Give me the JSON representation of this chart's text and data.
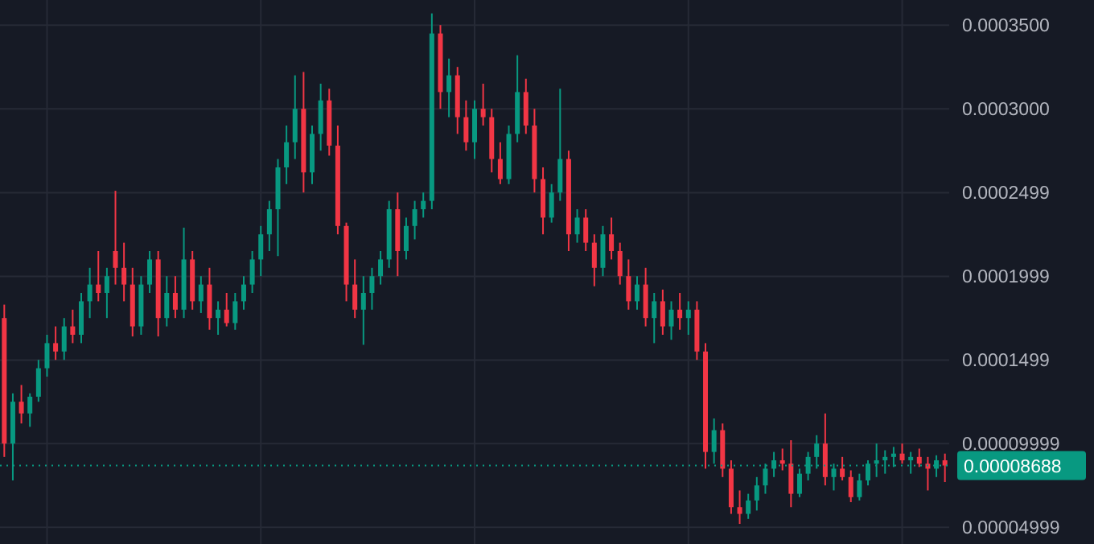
{
  "chart_data": {
    "type": "candlestick",
    "categories": [
      null,
      null,
      null,
      null,
      null,
      null,
      null,
      null,
      null,
      null,
      null,
      null,
      null,
      null,
      null,
      null,
      null,
      null,
      null,
      null,
      null,
      null,
      null,
      null,
      null,
      null,
      null,
      null,
      null,
      null,
      null,
      null,
      null,
      null,
      null,
      null,
      null,
      null,
      null,
      null,
      null,
      null,
      null,
      null,
      null,
      null,
      null,
      null,
      null,
      null,
      null,
      null,
      null,
      null,
      null,
      null,
      null,
      null,
      null,
      null,
      null,
      null,
      null,
      null,
      null,
      null,
      null,
      null,
      null,
      null,
      null,
      null,
      null,
      null,
      null,
      null,
      null,
      null,
      null,
      null,
      null,
      null,
      null,
      null,
      null,
      null,
      null,
      null,
      null,
      null,
      null,
      null,
      null,
      null,
      null,
      null,
      null,
      null,
      null,
      null,
      null,
      null,
      null,
      null,
      null,
      null,
      null,
      null,
      null,
      null,
      null
    ],
    "ohlc": [
      [
        0.000175,
        0.000183,
        9.2e-05,
        0.0001
      ],
      [
        0.0001,
        0.00013,
        7.8e-05,
        0.000125
      ],
      [
        0.000125,
        0.000135,
        0.000112,
        0.000118
      ],
      [
        0.000118,
        0.00013,
        0.00011,
        0.000128
      ],
      [
        0.000128,
        0.00015,
        0.000125,
        0.000145
      ],
      [
        0.000145,
        0.000165,
        0.00014,
        0.00016
      ],
      [
        0.00016,
        0.00017,
        0.00015,
        0.000155
      ],
      [
        0.000155,
        0.000175,
        0.00015,
        0.00017
      ],
      [
        0.00017,
        0.00018,
        0.00016,
        0.000165
      ],
      [
        0.000165,
        0.00019,
        0.00016,
        0.000185
      ],
      [
        0.000185,
        0.000205,
        0.000175,
        0.000195
      ],
      [
        0.000195,
        0.000215,
        0.000185,
        0.00019
      ],
      [
        0.00019,
        0.000205,
        0.000175,
        0.0002
      ],
      [
        0.000215,
        0.000251,
        0.000195,
        0.000205
      ],
      [
        0.000205,
        0.00022,
        0.000185,
        0.000195
      ],
      [
        0.000195,
        0.000205,
        0.000164,
        0.00017
      ],
      [
        0.00017,
        0.0002,
        0.000165,
        0.000195
      ],
      [
        0.000195,
        0.000215,
        0.00019,
        0.00021
      ],
      [
        0.00021,
        0.000215,
        0.000164,
        0.000175
      ],
      [
        0.000175,
        0.0002,
        0.00017,
        0.00019
      ],
      [
        0.00019,
        0.0002,
        0.000175,
        0.00018
      ],
      [
        0.00018,
        0.000229,
        0.000175,
        0.00021
      ],
      [
        0.00021,
        0.000215,
        0.00018,
        0.000185
      ],
      [
        0.000185,
        0.0002,
        0.000178,
        0.000195
      ],
      [
        0.000195,
        0.000205,
        0.000168,
        0.000175
      ],
      [
        0.000175,
        0.000185,
        0.000165,
        0.00018
      ],
      [
        0.00018,
        0.00019,
        0.00017,
        0.000172
      ],
      [
        0.000172,
        0.00019,
        0.000168,
        0.000185
      ],
      [
        0.000185,
        0.0002,
        0.00018,
        0.000195
      ],
      [
        0.000195,
        0.000215,
        0.00019,
        0.00021
      ],
      [
        0.00021,
        0.00023,
        0.0002,
        0.000225
      ],
      [
        0.000225,
        0.000245,
        0.000215,
        0.00024
      ],
      [
        0.00024,
        0.00027,
        0.000212,
        0.000265
      ],
      [
        0.000265,
        0.00029,
        0.000255,
        0.00028
      ],
      [
        0.00028,
        0.00032,
        0.00027,
        0.0003
      ],
      [
        0.0003,
        0.000322,
        0.00025,
        0.000262
      ],
      [
        0.000262,
        0.00029,
        0.000255,
        0.000285
      ],
      [
        0.000285,
        0.000315,
        0.000275,
        0.000305
      ],
      [
        0.000305,
        0.000312,
        0.000272,
        0.000278
      ],
      [
        0.000278,
        0.00029,
        0.000225,
        0.00023
      ],
      [
        0.00023,
        0.000232,
        0.000185,
        0.000195
      ],
      [
        0.000195,
        0.00021,
        0.000175,
        0.00018
      ],
      [
        0.00018,
        0.0002,
        0.000159,
        0.00019
      ],
      [
        0.00019,
        0.000205,
        0.00018,
        0.0002
      ],
      [
        0.0002,
        0.000215,
        0.000195,
        0.00021
      ],
      [
        0.00021,
        0.000245,
        0.000205,
        0.00024
      ],
      [
        0.00024,
        0.00025,
        0.0002,
        0.000215
      ],
      [
        0.000215,
        0.000235,
        0.00021,
        0.00023
      ],
      [
        0.00023,
        0.000245,
        0.000222,
        0.00024
      ],
      [
        0.00024,
        0.00025,
        0.000235,
        0.000245
      ],
      [
        0.000245,
        0.000357,
        0.00024,
        0.000345
      ],
      [
        0.000345,
        0.00035,
        0.0003,
        0.00031
      ],
      [
        0.00031,
        0.00033,
        0.000295,
        0.00032
      ],
      [
        0.00032,
        0.000325,
        0.000285,
        0.000295
      ],
      [
        0.000295,
        0.000305,
        0.000275,
        0.00028
      ],
      [
        0.00028,
        0.000305,
        0.00027,
        0.0003
      ],
      [
        0.0003,
        0.000315,
        0.00029,
        0.000295
      ],
      [
        0.000295,
        0.0003,
        0.000262,
        0.00027
      ],
      [
        0.00027,
        0.00028,
        0.000255,
        0.000258
      ],
      [
        0.000258,
        0.00029,
        0.000255,
        0.000285
      ],
      [
        0.000285,
        0.000332,
        0.00028,
        0.00031
      ],
      [
        0.00031,
        0.000318,
        0.000285,
        0.00029
      ],
      [
        0.00029,
        0.0003,
        0.00025,
        0.000258
      ],
      [
        0.000258,
        0.000265,
        0.000225,
        0.000235
      ],
      [
        0.000235,
        0.000255,
        0.000232,
        0.00025
      ],
      [
        0.00025,
        0.000312,
        0.000245,
        0.00027
      ],
      [
        0.00027,
        0.000275,
        0.000215,
        0.000225
      ],
      [
        0.000225,
        0.00024,
        0.00022,
        0.000235
      ],
      [
        0.000235,
        0.00024,
        0.000215,
        0.00022
      ],
      [
        0.00022,
        0.000225,
        0.000194,
        0.000205
      ],
      [
        0.000205,
        0.00023,
        0.0002,
        0.000225
      ],
      [
        0.000225,
        0.000235,
        0.00021,
        0.000215
      ],
      [
        0.000215,
        0.00022,
        0.000195,
        0.0002
      ],
      [
        0.0002,
        0.00021,
        0.00018,
        0.000185
      ],
      [
        0.000185,
        0.0002,
        0.00018,
        0.000195
      ],
      [
        0.000195,
        0.000205,
        0.00017,
        0.000175
      ],
      [
        0.000175,
        0.00019,
        0.00016,
        0.000185
      ],
      [
        0.000185,
        0.000192,
        0.000165,
        0.00017
      ],
      [
        0.00017,
        0.000185,
        0.000162,
        0.00018
      ],
      [
        0.00018,
        0.00019,
        0.000168,
        0.000175
      ],
      [
        0.000175,
        0.000185,
        0.000165,
        0.00018
      ],
      [
        0.00018,
        0.000185,
        0.00015,
        0.000155
      ],
      [
        0.000155,
        0.00016,
        8.5e-05,
        9.5e-05
      ],
      [
        9.5e-05,
        0.000115,
        8.8e-05,
        0.000108
      ],
      [
        0.000108,
        0.000112,
        8e-05,
        8.5e-05
      ],
      [
        8.5e-05,
        9e-05,
        5.8e-05,
        6.2e-05
      ],
      [
        6.2e-05,
        7.2e-05,
        5.2e-05,
        5.8e-05
      ],
      [
        5.8e-05,
        7e-05,
        5.5e-05,
        6.6e-05
      ],
      [
        6.6e-05,
        8e-05,
        6e-05,
        7.5e-05
      ],
      [
        7.5e-05,
        8.8e-05,
        7e-05,
        8.5e-05
      ],
      [
        8.5e-05,
        9.5e-05,
        8e-05,
        9e-05
      ],
      [
        9e-05,
        9.7e-05,
        8.4e-05,
        8.8e-05
      ],
      [
        8.8e-05,
        0.000102,
        6.2e-05,
        7e-05
      ],
      [
        7e-05,
        8.5e-05,
        6.8e-05,
        8.2e-05
      ],
      [
        8.2e-05,
        9.5e-05,
        7.8e-05,
        9.2e-05
      ],
      [
        9.2e-05,
        0.000105,
        8.5e-05,
        0.0001
      ],
      [
        0.0001,
        0.000118,
        7.5e-05,
        8e-05
      ],
      [
        8e-05,
        8.8e-05,
        7.2e-05,
        8.5e-05
      ],
      [
        8.5e-05,
        9.2e-05,
        7.8e-05,
        8e-05
      ],
      [
        8e-05,
        8.4e-05,
        6.5e-05,
        6.8e-05
      ],
      [
        6.8e-05,
        8.2e-05,
        6.6e-05,
        7.8e-05
      ],
      [
        7.8e-05,
        9e-05,
        7.5e-05,
        8.8e-05
      ],
      [
        8.8e-05,
        0.0001,
        8e-05,
        9e-05
      ],
      [
        9e-05,
        9.6e-05,
        8.2e-05,
        9.2e-05
      ],
      [
        9.2e-05,
        9.8e-05,
        8.6e-05,
        9.4e-05
      ],
      [
        9.4e-05,
        0.0001,
        8.8e-05,
        9e-05
      ],
      [
        9e-05,
        9.5e-05,
        8.2e-05,
        9.2e-05
      ],
      [
        9.2e-05,
        9.7e-05,
        8.6e-05,
        8.8e-05
      ],
      [
        8.8e-05,
        9.2e-05,
        7.2e-05,
        8.5e-05
      ],
      [
        8.5e-05,
        9.3e-05,
        8e-05,
        9e-05
      ],
      [
        9e-05,
        9.4e-05,
        7.7e-05,
        8.688e-05
      ]
    ],
    "colors": [
      "#f23645",
      "#089981",
      "#f23645",
      "#089981",
      "#089981",
      "#089981",
      "#f23645",
      "#089981",
      "#f23645",
      "#089981",
      "#089981",
      "#f23645",
      "#089981",
      "#f23645",
      "#f23645",
      "#f23645",
      "#089981",
      "#089981",
      "#f23645",
      "#089981",
      "#f23645",
      "#089981",
      "#f23645",
      "#089981",
      "#f23645",
      "#089981",
      "#f23645",
      "#089981",
      "#089981",
      "#089981",
      "#089981",
      "#089981",
      "#089981",
      "#089981",
      "#089981",
      "#f23645",
      "#089981",
      "#089981",
      "#f23645",
      "#f23645",
      "#f23645",
      "#f23645",
      "#089981",
      "#089981",
      "#089981",
      "#089981",
      "#f23645",
      "#089981",
      "#089981",
      "#089981",
      "#089981",
      "#f23645",
      "#089981",
      "#f23645",
      "#f23645",
      "#089981",
      "#f23645",
      "#f23645",
      "#f23645",
      "#089981",
      "#089981",
      "#f23645",
      "#f23645",
      "#f23645",
      "#089981",
      "#089981",
      "#f23645",
      "#089981",
      "#f23645",
      "#f23645",
      "#089981",
      "#f23645",
      "#f23645",
      "#f23645",
      "#089981",
      "#f23645",
      "#089981",
      "#f23645",
      "#089981",
      "#f23645",
      "#089981",
      "#f23645",
      "#f23645",
      "#089981",
      "#f23645",
      "#f23645",
      "#f23645",
      "#089981",
      "#089981",
      "#089981",
      "#089981",
      "#f23645",
      "#f23645",
      "#089981",
      "#089981",
      "#089981",
      "#f23645",
      "#089981",
      "#f23645",
      "#f23645",
      "#089981",
      "#089981",
      "#089981",
      "#089981",
      "#089981",
      "#f23645",
      "#089981",
      "#f23645",
      "#f23645",
      "#089981",
      "#f23645"
    ],
    "ylim": [
      4e-05,
      0.000365
    ],
    "yticks": [
      {
        "value": 4.999e-05,
        "label": "0.00004999"
      },
      {
        "value": 9.999e-05,
        "label": "0.00009999"
      },
      0.0001499,
      0.0001999,
      0.0002499,
      {
        "value": 0.0003,
        "label": "0.0003000"
      },
      {
        "value": 0.00035,
        "label": "0.0003500"
      }
    ],
    "grid": true,
    "ref_lines": [
      {
        "axis": "y",
        "value": 8.688e-05,
        "label": "0.00008688",
        "color": "#089981",
        "line_style": "dotted"
      }
    ]
  }
}
